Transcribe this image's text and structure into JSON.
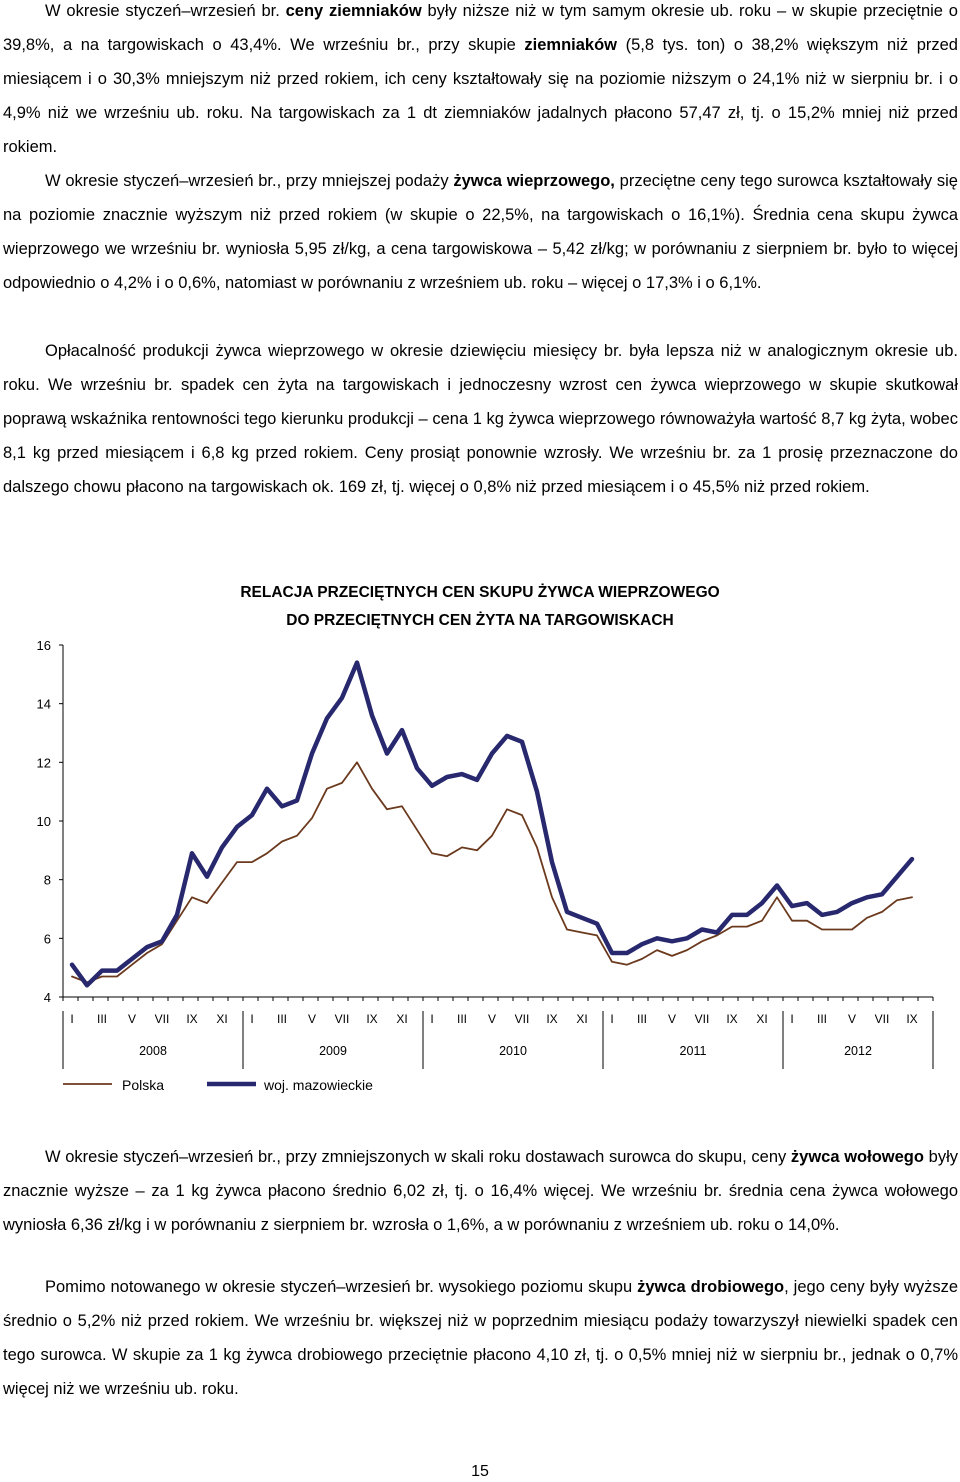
{
  "text_top": {
    "p1": [
      "W okresie styczeń–wrzesień br. ",
      "ceny ziemniaków",
      " były niższe niż w tym samym okresie ub. roku – w skupie przeciętnie o 39,8%, a na targowiskach o 43,4%. We wrześniu br., przy skupie ",
      "ziemniaków",
      " (5,8 tys. ton) o 38,2% większym niż przed miesiącem i o 30,3% mniejszym niż przed rokiem, ich ceny kształtowały się na poziomie niższym o 24,1% niż w sierpniu br. i o 4,9% niż we wrześniu ub. roku. Na targowiskach za 1 dt ziemniaków jadalnych płacono 57,47 zł, tj. o 15,2% mniej niż przed rokiem."
    ],
    "p2": [
      "W okresie styczeń–wrzesień br.",
      ", przy mniejszej podaży ",
      "żywca wieprzowego,",
      " przeciętne ceny tego surowca kształtowały się na poziomie znacznie wyższym niż przed rokiem (w skupie o 22,5%, na targowiskach o 16,1%). Średnia cena skupu żywca wieprzowego we wrześniu br. wyniosła 5,95 zł/kg, a cena targowiskowa – 5,42 zł/kg; w porównaniu z sierpniem br. było to więcej odpowiednio o 4,2% i o 0,6%, natomiast w porównaniu z wrześniem ub. roku – więcej o 17,3% i o 6,1%."
    ],
    "p3": "Opłacalność produkcji żywca wieprzowego w okresie dziewięciu miesięcy br. była lepsza niż w analogicznym okresie ub. roku. We wrześniu br. spadek cen żyta na targowiskach i jednoczesny wzrost cen żywca wieprzowego w skupie skutkował poprawą wskaźnika rentowności tego kierunku produkcji – cena 1 kg żywca wieprzowego równoważyła wartość 8,7 kg żyta, wobec 8,1 kg przed miesiącem i 6,8 kg przed rokiem. Ceny prosiąt ponownie wzrosły. We wrześniu br. za 1 prosię przeznaczone do dalszego chowu płacono na targowiskach ok. 169 zł, tj. więcej o 0,8% niż przed miesiącem i o 45,5% niż przed rokiem."
  },
  "chart_data": {
    "type": "line",
    "title_line1": "RELACJA PRZECIĘTNYCH CEN SKUPU ŻYWCA WIEPRZOWEGO",
    "title_line2": "DO PRZECIĘTNYCH CEN ŻYTA NA TARGOWISKACH",
    "ylim": [
      4,
      16
    ],
    "yticks": [
      4,
      6,
      8,
      10,
      12,
      14,
      16
    ],
    "grid": false,
    "month_tick_labels": [
      "I",
      "III",
      "V",
      "VII",
      "IX",
      "XI",
      "I",
      "III",
      "V",
      "VII",
      "IX",
      "XI",
      "I",
      "III",
      "V",
      "VII",
      "IX",
      "XI",
      "I",
      "III",
      "V",
      "VII",
      "IX",
      "XI",
      "I",
      "III",
      "V",
      "VII",
      "IX"
    ],
    "years": [
      "2008",
      "2009",
      "2010",
      "2011",
      "2012"
    ],
    "series": [
      {
        "name": "Polska",
        "color": "#6b3a1e",
        "values": [
          4.7,
          4.5,
          4.7,
          4.7,
          5.1,
          5.5,
          5.8,
          6.6,
          7.4,
          7.2,
          7.9,
          8.6,
          8.6,
          8.9,
          9.3,
          9.5,
          10.1,
          11.1,
          11.3,
          12.0,
          11.1,
          10.4,
          10.5,
          9.7,
          8.9,
          8.8,
          9.1,
          9.0,
          9.5,
          10.4,
          10.2,
          9.1,
          7.4,
          6.3,
          6.2,
          6.1,
          5.2,
          5.1,
          5.3,
          5.6,
          5.4,
          5.6,
          5.9,
          6.1,
          6.4,
          6.4,
          6.6,
          7.4,
          6.6,
          6.6,
          6.3,
          6.3,
          6.3,
          6.7,
          6.9,
          7.3,
          7.4
        ]
      },
      {
        "name": "woj. mazowieckie",
        "color": "#27286e",
        "values": [
          5.1,
          4.4,
          4.9,
          4.9,
          5.3,
          5.7,
          5.9,
          6.8,
          8.9,
          8.1,
          9.1,
          9.8,
          10.2,
          11.1,
          10.5,
          10.7,
          12.3,
          13.5,
          14.2,
          15.4,
          13.6,
          12.3,
          13.1,
          11.8,
          11.2,
          11.5,
          11.6,
          11.4,
          12.3,
          12.9,
          12.7,
          11.0,
          8.6,
          6.9,
          6.7,
          6.5,
          5.5,
          5.5,
          5.8,
          6.0,
          5.9,
          6.0,
          6.3,
          6.2,
          6.8,
          6.8,
          7.2,
          7.8,
          7.1,
          7.2,
          6.8,
          6.9,
          7.2,
          7.4,
          7.5,
          8.1,
          8.7
        ]
      }
    ]
  },
  "text_bottom": {
    "p4": [
      "W okresie styczeń–wrzesień br., przy zmniejszonych w skali roku dostawach surowca do skupu, ceny ",
      "żywca wołowego",
      " były znacznie wyższe – za 1 kg żywca płacono średnio 6,02 zł, tj. o 16,4% więcej. We wrześniu br. średnia cena żywca wołowego wyniosła 6,36 zł/kg i w porównaniu z sierpniem br. wzrosła o 1,6%, a w porównaniu z wrześniem ub. roku o 14,0%."
    ],
    "p5": [
      "Pomimo notowanego w okresie styczeń–wrzesień br. wysokiego poziomu skupu ",
      "żywca drobiowego",
      ", jego ceny były wyższe średnio o 5,2% niż przed rokiem. We wrześniu br. większej niż w poprzednim miesiącu podaży towarzyszył niewielki spadek cen tego surowca. W skupie za 1 kg żywca drobiowego przeciętnie płacono 4,10 zł, tj. o 0,5% mniej niż w sierpniu br., jednak o 0,7% więcej niż we wrześniu ub. roku."
    ]
  },
  "page_number": "15"
}
